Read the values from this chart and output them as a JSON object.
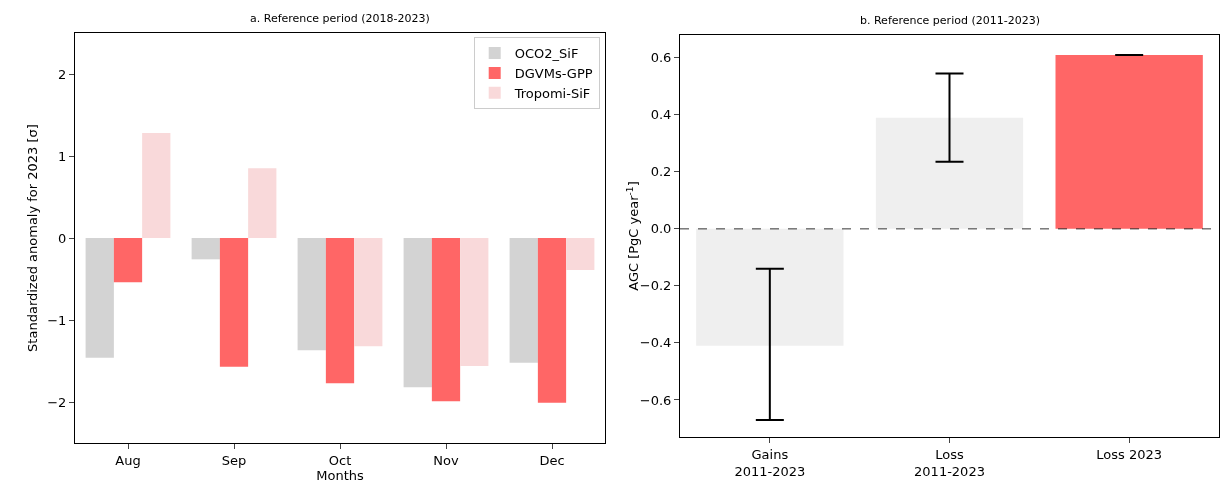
{
  "chart_data": [
    {
      "type": "bar",
      "title": "a. Reference period (2018-2023)",
      "xlabel": "Months",
      "ylabel": "Standardized anomaly for 2023 [σ]",
      "categories": [
        "Aug",
        "Sep",
        "Oct",
        "Nov",
        "Dec"
      ],
      "series": [
        {
          "name": "OCO2_SiF",
          "color": "#d3d3d3",
          "values": [
            -1.46,
            -0.26,
            -1.37,
            -1.82,
            -1.52
          ]
        },
        {
          "name": "DGVMs-GPP",
          "color": "#ff6666",
          "values": [
            -0.54,
            -1.57,
            -1.77,
            -1.99,
            -2.01
          ]
        },
        {
          "name": "Tropomi-SiF",
          "color": "#f9d9da",
          "values": [
            1.28,
            0.85,
            -1.32,
            -1.56,
            -0.39
          ]
        }
      ],
      "ylim": [
        -2.5,
        2.5
      ],
      "yticks": [
        {
          "value": -2,
          "label": "−2"
        },
        {
          "value": -1,
          "label": "−1"
        },
        0,
        1,
        2
      ],
      "grid": false,
      "legend": "top right"
    },
    {
      "type": "bar",
      "title": "b. Reference period (2011-2023)",
      "ylabel": "AGC [PgC year$^{-1}$]",
      "categories": [
        "Gains\n2011-2023",
        "Loss\n2011-2023",
        "Loss 2023"
      ],
      "values": [
        -0.41,
        0.39,
        0.61
      ],
      "colors": [
        "#efefef",
        "#efefef",
        "#ff6666"
      ],
      "errors": [
        [
          -0.67,
          -0.14
        ],
        [
          0.235,
          0.545
        ],
        null
      ],
      "ylim": [
        -0.73,
        0.68
      ],
      "yticks": [
        {
          "value": -0.6,
          "label": "−0.6"
        },
        {
          "value": -0.4,
          "label": "−0.4"
        },
        {
          "value": -0.2,
          "label": "−0.2"
        },
        {
          "value": 0,
          "label": "0.0"
        },
        {
          "value": 0.2,
          "label": "0.2"
        },
        {
          "value": 0.4,
          "label": "0.4"
        },
        {
          "value": 0.6,
          "label": "0.6"
        }
      ],
      "grid": false,
      "legend": false,
      "ref_lines": [
        {
          "axis": "y",
          "value": 0,
          "color": "#000000",
          "line_style": "dashed"
        }
      ]
    }
  ]
}
